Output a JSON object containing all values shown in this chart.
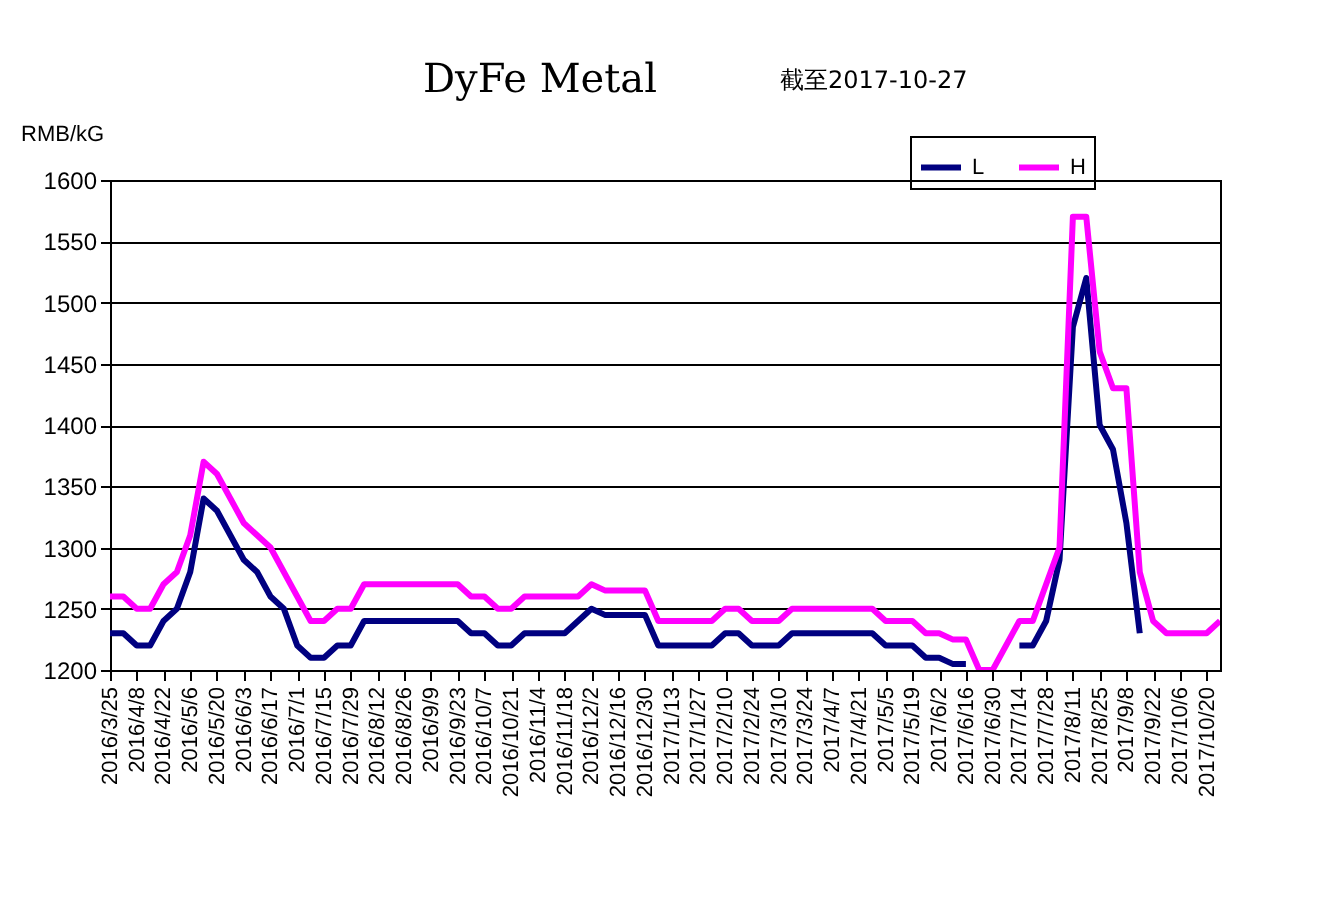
{
  "chart_data": {
    "type": "line",
    "title": "DyFe Metal",
    "subtitle": "截至2017-10-27",
    "ylabel": "RMB/kG",
    "x": [
      "2016-03-25",
      "2016-04-01",
      "2016-04-08",
      "2016-04-15",
      "2016-04-22",
      "2016-04-29",
      "2016-05-06",
      "2016-05-13",
      "2016-05-20",
      "2016-05-27",
      "2016-06-03",
      "2016-06-10",
      "2016-06-17",
      "2016-06-24",
      "2016-07-01",
      "2016-07-08",
      "2016-07-15",
      "2016-07-22",
      "2016-07-29",
      "2016-08-05",
      "2016-08-12",
      "2016-08-19",
      "2016-08-26",
      "2016-09-02",
      "2016-09-09",
      "2016-09-16",
      "2016-09-23",
      "2016-09-30",
      "2016-10-07",
      "2016-10-14",
      "2016-10-21",
      "2016-10-28",
      "2016-11-04",
      "2016-11-11",
      "2016-11-18",
      "2016-11-25",
      "2016-12-02",
      "2016-12-09",
      "2016-12-16",
      "2016-12-23",
      "2016-12-30",
      "2017-01-06",
      "2017-01-13",
      "2017-01-20",
      "2017-01-27",
      "2017-02-03",
      "2017-02-10",
      "2017-02-17",
      "2017-02-24",
      "2017-03-03",
      "2017-03-10",
      "2017-03-17",
      "2017-03-24",
      "2017-03-31",
      "2017-04-07",
      "2017-04-14",
      "2017-04-21",
      "2017-04-28",
      "2017-05-05",
      "2017-05-12",
      "2017-05-19",
      "2017-05-26",
      "2017-06-02",
      "2017-06-09",
      "2017-06-16",
      "2017-06-23",
      "2017-06-30",
      "2017-07-07",
      "2017-07-14",
      "2017-07-21",
      "2017-07-28",
      "2017-08-04",
      "2017-08-11",
      "2017-08-18",
      "2017-08-25",
      "2017-09-01",
      "2017-09-08",
      "2017-09-15",
      "2017-09-22",
      "2017-09-29",
      "2017-10-06",
      "2017-10-13",
      "2017-10-20",
      "2017-10-27"
    ],
    "series": [
      {
        "name": "L",
        "color": "#000080",
        "values": [
          1230,
          1230,
          1220,
          1220,
          1240,
          1250,
          1280,
          1340,
          1330,
          1310,
          1290,
          1280,
          1260,
          1250,
          1220,
          1210,
          1210,
          1220,
          1220,
          1240,
          1240,
          1240,
          1240,
          1240,
          1240,
          1240,
          1240,
          1230,
          1230,
          1220,
          1220,
          1230,
          1230,
          1230,
          1230,
          1240,
          1250,
          1245,
          1245,
          1245,
          1245,
          1220,
          1220,
          1220,
          1220,
          1220,
          1230,
          1230,
          1220,
          1220,
          1220,
          1230,
          1230,
          1230,
          1230,
          1230,
          1230,
          1230,
          1220,
          1220,
          1220,
          1210,
          1210,
          1205,
          1205,
          null,
          null,
          null,
          1220,
          1220,
          1240,
          1290,
          1480,
          1520,
          1400,
          1380,
          1320,
          1230,
          null,
          null,
          null,
          null,
          null,
          null
        ]
      },
      {
        "name": "H",
        "color": "#ff00ff",
        "values": [
          1260,
          1260,
          1250,
          1250,
          1270,
          1280,
          1310,
          1370,
          1360,
          1340,
          1320,
          1310,
          1300,
          1280,
          1260,
          1240,
          1240,
          1250,
          1250,
          1270,
          1270,
          1270,
          1270,
          1270,
          1270,
          1270,
          1270,
          1260,
          1260,
          1250,
          1250,
          1260,
          1260,
          1260,
          1260,
          1260,
          1270,
          1265,
          1265,
          1265,
          1265,
          1240,
          1240,
          1240,
          1240,
          1240,
          1250,
          1250,
          1240,
          1240,
          1240,
          1250,
          1250,
          1250,
          1250,
          1250,
          1250,
          1250,
          1240,
          1240,
          1240,
          1230,
          1230,
          1225,
          1225,
          1200,
          1200,
          1220,
          1240,
          1240,
          1270,
          1300,
          1570,
          1570,
          1460,
          1430,
          1430,
          1280,
          1240,
          1230,
          1230,
          1230,
          1230,
          1240
        ]
      }
    ],
    "xlim": [
      "2016-03-25",
      "2017-10-27"
    ],
    "xticks": [
      {
        "value": "2016-03-25",
        "label": "2016/3/25"
      },
      {
        "value": "2016-04-08",
        "label": "2016/4/8"
      },
      {
        "value": "2016-04-22",
        "label": "2016/4/22"
      },
      {
        "value": "2016-05-06",
        "label": "2016/5/6"
      },
      {
        "value": "2016-05-20",
        "label": "2016/5/20"
      },
      {
        "value": "2016-06-03",
        "label": "2016/6/3"
      },
      {
        "value": "2016-06-17",
        "label": "2016/6/17"
      },
      {
        "value": "2016-07-01",
        "label": "2016/7/1"
      },
      {
        "value": "2016-07-15",
        "label": "2016/7/15"
      },
      {
        "value": "2016-07-29",
        "label": "2016/7/29"
      },
      {
        "value": "2016-08-12",
        "label": "2016/8/12"
      },
      {
        "value": "2016-08-26",
        "label": "2016/8/26"
      },
      {
        "value": "2016-09-09",
        "label": "2016/9/9"
      },
      {
        "value": "2016-09-23",
        "label": "2016/9/23"
      },
      {
        "value": "2016-10-07",
        "label": "2016/10/7"
      },
      {
        "value": "2016-10-21",
        "label": "2016/10/21"
      },
      {
        "value": "2016-11-04",
        "label": "2016/11/4"
      },
      {
        "value": "2016-11-18",
        "label": "2016/11/18"
      },
      {
        "value": "2016-12-02",
        "label": "2016/12/2"
      },
      {
        "value": "2016-12-16",
        "label": "2016/12/16"
      },
      {
        "value": "2016-12-30",
        "label": "2016/12/30"
      },
      {
        "value": "2017-01-13",
        "label": "2017/1/13"
      },
      {
        "value": "2017-01-27",
        "label": "2017/1/27"
      },
      {
        "value": "2017-02-10",
        "label": "2017/2/10"
      },
      {
        "value": "2017-02-24",
        "label": "2017/2/24"
      },
      {
        "value": "2017-03-10",
        "label": "2017/3/10"
      },
      {
        "value": "2017-03-24",
        "label": "2017/3/24"
      },
      {
        "value": "2017-04-07",
        "label": "2017/4/7"
      },
      {
        "value": "2017-04-21",
        "label": "2017/4/21"
      },
      {
        "value": "2017-05-05",
        "label": "2017/5/5"
      },
      {
        "value": "2017-05-19",
        "label": "2017/5/19"
      },
      {
        "value": "2017-06-02",
        "label": "2017/6/2"
      },
      {
        "value": "2017-06-16",
        "label": "2017/6/16"
      },
      {
        "value": "2017-06-30",
        "label": "2017/6/30"
      },
      {
        "value": "2017-07-14",
        "label": "2017/7/14"
      },
      {
        "value": "2017-07-28",
        "label": "2017/7/28"
      },
      {
        "value": "2017-08-11",
        "label": "2017/8/11"
      },
      {
        "value": "2017-08-25",
        "label": "2017/8/25"
      },
      {
        "value": "2017-09-08",
        "label": "2017/9/8"
      },
      {
        "value": "2017-09-22",
        "label": "2017/9/22"
      },
      {
        "value": "2017-10-06",
        "label": "2017/10/6"
      },
      {
        "value": "2017-10-20",
        "label": "2017/10/20"
      }
    ],
    "ylim": [
      1200,
      1600
    ],
    "yticks": [
      1200,
      1250,
      1300,
      1350,
      1400,
      1450,
      1500,
      1550,
      1600
    ],
    "grid": "y",
    "legend": "top right",
    "line_style": "solid"
  }
}
